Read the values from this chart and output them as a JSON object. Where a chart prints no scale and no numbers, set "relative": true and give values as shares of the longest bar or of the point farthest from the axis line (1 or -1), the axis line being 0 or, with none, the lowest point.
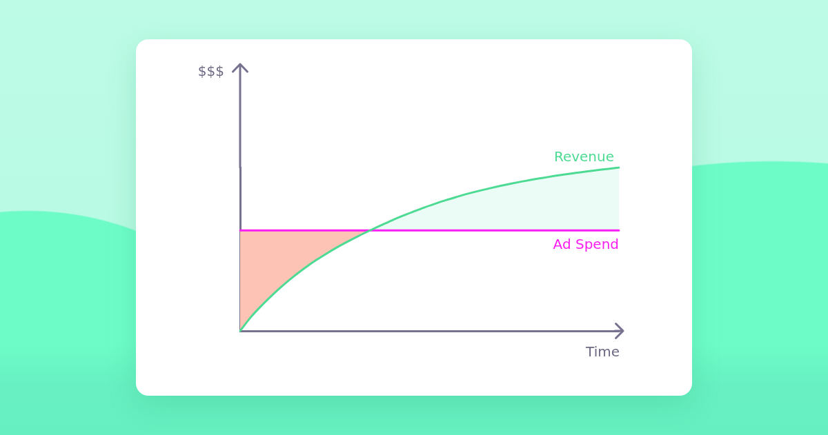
{
  "chart_data": {
    "type": "line",
    "relative": true,
    "marker": "none",
    "xlabel": "Time",
    "annotations": [
      "$$$"
    ],
    "categories": [
      null,
      null,
      null,
      null,
      null,
      null,
      null,
      null,
      null,
      null,
      null,
      null,
      null,
      null,
      null,
      null,
      null,
      null,
      null,
      null,
      null,
      null,
      null,
      null,
      null,
      null,
      null,
      null,
      null,
      null,
      null,
      null,
      null,
      null,
      null,
      null
    ],
    "series": [
      {
        "name": "Revenue",
        "color": "#4ddb94",
        "values": [
          0,
          0.085,
          0.156,
          0.221,
          0.281,
          0.336,
          0.386,
          0.432,
          0.474,
          0.513,
          0.549,
          0.583,
          0.615,
          0.646,
          0.676,
          0.704,
          0.73,
          0.755,
          0.778,
          0.8,
          0.82,
          0.839,
          0.856,
          0.872,
          0.887,
          0.901,
          0.914,
          0.926,
          0.937,
          0.948,
          0.958,
          0.967,
          0.976,
          0.984,
          0.992,
          1
        ]
      },
      {
        "name": "Ad Spend",
        "color": "#fa1ef2",
        "values": [
          0.615,
          0.615,
          0.615,
          0.615,
          0.615,
          0.615,
          0.615,
          0.615,
          0.615,
          0.615,
          0.615,
          0.615,
          0.615,
          0.615,
          0.615,
          0.615,
          0.615,
          0.615,
          0.615,
          0.615,
          0.615,
          0.615,
          0.615,
          0.615,
          0.615,
          0.615,
          0.615,
          0.615,
          0.615,
          0.615,
          0.615,
          0.615,
          0.615,
          0.615,
          0.615,
          0.615
        ]
      },
      {
        "type": "area",
        "color": "#fdc4b5",
        "values": [
          0.615,
          0.615,
          0.615,
          0.615,
          0.615,
          0.615,
          0.615,
          0.615,
          0.615,
          0.615,
          0.615,
          0.615,
          0.615,
          null,
          null,
          null,
          null,
          null,
          null,
          null,
          null,
          null,
          null,
          null,
          null,
          null,
          null,
          null,
          null,
          null,
          null,
          null,
          null,
          null,
          null,
          null
        ]
      },
      {
        "type": "area",
        "color": "#eafcf5",
        "values": [
          null,
          null,
          null,
          null,
          null,
          null,
          null,
          null,
          null,
          null,
          null,
          null,
          0.615,
          0.646,
          0.676,
          0.704,
          0.73,
          0.755,
          0.778,
          0.8,
          0.82,
          0.839,
          0.856,
          0.872,
          0.887,
          0.901,
          0.914,
          0.926,
          0.937,
          0.948,
          0.958,
          0.967,
          0.976,
          0.984,
          0.992,
          1
        ]
      }
    ]
  }
}
